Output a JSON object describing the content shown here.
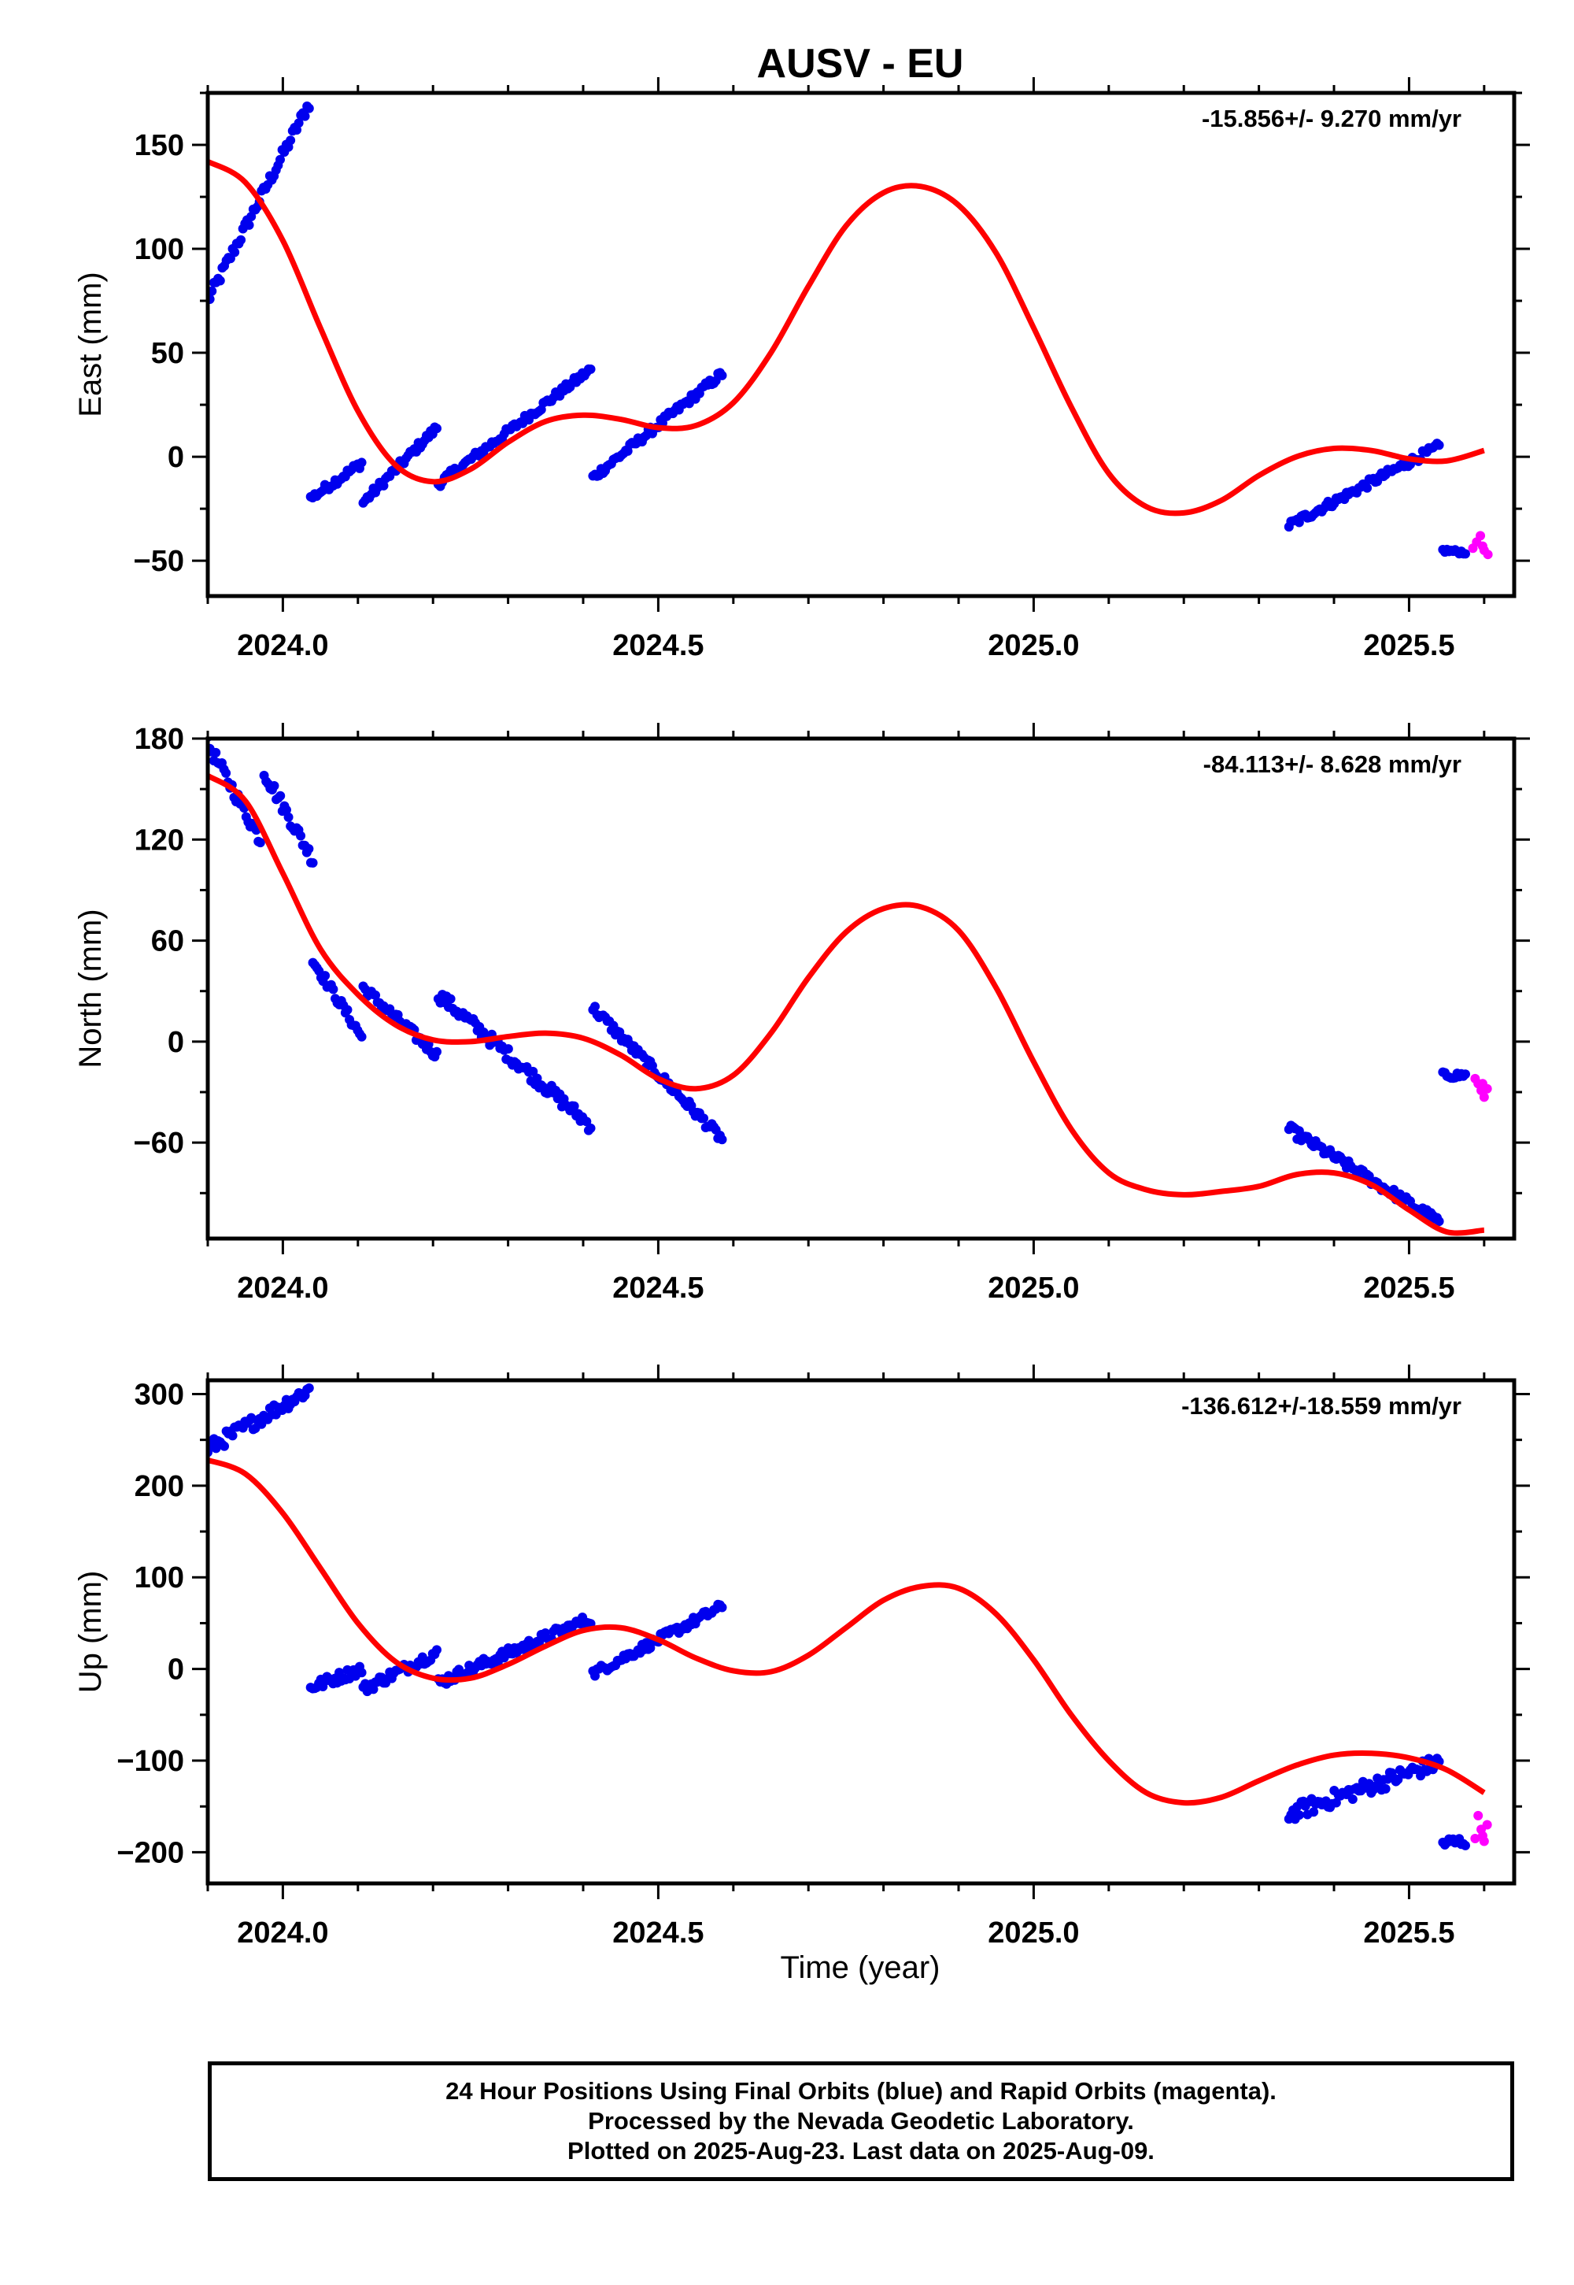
{
  "title": "AUSV - EU",
  "xlabel": "Time (year)",
  "footer": {
    "line1": "24 Hour Positions Using Final Orbits (blue) and Rapid Orbits (magenta).",
    "line2": "Processed by the Nevada Geodetic Laboratory.",
    "line3": "Plotted on 2025-Aug-23. Last data on 2025-Aug-09."
  },
  "colors": {
    "final": "#0000ee",
    "rapid": "#ff00ff",
    "model": "#ff0000",
    "frame": "#000000"
  },
  "chart_data": [
    {
      "type": "scatter",
      "panel": "east",
      "ylabel": "East (mm)",
      "rate_label": "-15.856+/- 9.270 mm/yr",
      "xlim": [
        2023.9,
        2025.64
      ],
      "ylim": [
        -67,
        175
      ],
      "xticks": [
        2024.0,
        2024.5,
        2025.0,
        2025.5
      ],
      "xtick_labels": [
        "2024.0",
        "2024.5",
        "2025.0",
        "2025.5"
      ],
      "yticks": [
        -50,
        0,
        50,
        100,
        150
      ],
      "ytick_labels": [
        "−50",
        "0",
        "50",
        "100",
        "150"
      ],
      "final_segments": [
        {
          "t0": 2023.9,
          "t1": 2024.035,
          "y0": 75,
          "y1": 170,
          "noise": 3
        },
        {
          "t0": 2024.037,
          "t1": 2024.105,
          "y0": -20,
          "y1": -3,
          "noise": 2
        },
        {
          "t0": 2024.107,
          "t1": 2024.205,
          "y0": -22,
          "y1": 14,
          "noise": 2
        },
        {
          "t0": 2024.207,
          "t1": 2024.41,
          "y0": -13,
          "y1": 42,
          "noise": 2
        },
        {
          "t0": 2024.413,
          "t1": 2024.585,
          "y0": -10,
          "y1": 40,
          "noise": 2
        },
        {
          "t0": 2025.34,
          "t1": 2025.54,
          "y0": -33,
          "y1": 5,
          "noise": 2
        },
        {
          "t0": 2025.545,
          "t1": 2025.575,
          "y0": -45,
          "y1": -46,
          "noise": 1
        }
      ],
      "rapid_points": [
        [
          2025.585,
          -44
        ],
        [
          2025.59,
          -41
        ],
        [
          2025.595,
          -38
        ],
        [
          2025.6,
          -45
        ],
        [
          2025.605,
          -47
        ],
        [
          2025.598,
          -43
        ]
      ],
      "model": [
        [
          2023.9,
          142
        ],
        [
          2023.95,
          132
        ],
        [
          2024.0,
          104
        ],
        [
          2024.05,
          62
        ],
        [
          2024.1,
          22
        ],
        [
          2024.15,
          -4
        ],
        [
          2024.2,
          -12
        ],
        [
          2024.25,
          -6
        ],
        [
          2024.3,
          7
        ],
        [
          2024.35,
          17
        ],
        [
          2024.4,
          20
        ],
        [
          2024.45,
          18
        ],
        [
          2024.5,
          14
        ],
        [
          2024.55,
          15
        ],
        [
          2024.6,
          26
        ],
        [
          2024.65,
          50
        ],
        [
          2024.7,
          82
        ],
        [
          2024.75,
          111
        ],
        [
          2024.8,
          127
        ],
        [
          2024.85,
          130
        ],
        [
          2024.9,
          121
        ],
        [
          2024.95,
          98
        ],
        [
          2025.0,
          62
        ],
        [
          2025.05,
          24
        ],
        [
          2025.1,
          -8
        ],
        [
          2025.15,
          -24
        ],
        [
          2025.2,
          -27
        ],
        [
          2025.25,
          -21
        ],
        [
          2025.3,
          -9
        ],
        [
          2025.35,
          0
        ],
        [
          2025.4,
          4
        ],
        [
          2025.45,
          3
        ],
        [
          2025.5,
          -1
        ],
        [
          2025.55,
          -2
        ],
        [
          2025.6,
          3
        ]
      ]
    },
    {
      "type": "scatter",
      "panel": "north",
      "ylabel": "North (mm)",
      "rate_label": "-84.113+/- 8.628 mm/yr",
      "xlim": [
        2023.9,
        2025.64
      ],
      "ylim": [
        -117,
        180
      ],
      "xticks": [
        2024.0,
        2024.5,
        2025.0,
        2025.5
      ],
      "xtick_labels": [
        "2024.0",
        "2024.5",
        "2025.0",
        "2025.5"
      ],
      "yticks": [
        -60,
        0,
        60,
        120,
        180
      ],
      "ytick_labels": [
        "−60",
        "0",
        "60",
        "120",
        "180"
      ],
      "final_segments": [
        {
          "t0": 2023.9,
          "t1": 2023.97,
          "y0": 177,
          "y1": 120,
          "noise": 4
        },
        {
          "t0": 2023.975,
          "t1": 2024.04,
          "y0": 160,
          "y1": 108,
          "noise": 4
        },
        {
          "t0": 2024.04,
          "t1": 2024.105,
          "y0": 48,
          "y1": 3,
          "noise": 3
        },
        {
          "t0": 2024.107,
          "t1": 2024.205,
          "y0": 32,
          "y1": -8,
          "noise": 3
        },
        {
          "t0": 2024.207,
          "t1": 2024.41,
          "y0": 28,
          "y1": -50,
          "noise": 4
        },
        {
          "t0": 2024.413,
          "t1": 2024.585,
          "y0": 20,
          "y1": -58,
          "noise": 3
        },
        {
          "t0": 2025.34,
          "t1": 2025.54,
          "y0": -52,
          "y1": -107,
          "noise": 3
        },
        {
          "t0": 2025.545,
          "t1": 2025.575,
          "y0": -20,
          "y1": -20,
          "noise": 2
        }
      ],
      "rapid_points": [
        [
          2025.588,
          -22
        ],
        [
          2025.592,
          -25
        ],
        [
          2025.596,
          -29
        ],
        [
          2025.6,
          -33
        ],
        [
          2025.604,
          -28
        ],
        [
          2025.598,
          -25
        ]
      ],
      "model": [
        [
          2023.9,
          158
        ],
        [
          2023.95,
          143
        ],
        [
          2024.0,
          100
        ],
        [
          2024.05,
          55
        ],
        [
          2024.1,
          28
        ],
        [
          2024.15,
          10
        ],
        [
          2024.2,
          1
        ],
        [
          2024.25,
          0
        ],
        [
          2024.3,
          3
        ],
        [
          2024.35,
          5
        ],
        [
          2024.4,
          2
        ],
        [
          2024.45,
          -8
        ],
        [
          2024.5,
          -22
        ],
        [
          2024.55,
          -28
        ],
        [
          2024.6,
          -20
        ],
        [
          2024.65,
          5
        ],
        [
          2024.7,
          38
        ],
        [
          2024.75,
          65
        ],
        [
          2024.8,
          79
        ],
        [
          2024.85,
          80
        ],
        [
          2024.9,
          66
        ],
        [
          2024.95,
          32
        ],
        [
          2025.0,
          -12
        ],
        [
          2025.05,
          -52
        ],
        [
          2025.1,
          -78
        ],
        [
          2025.15,
          -88
        ],
        [
          2025.2,
          -91
        ],
        [
          2025.25,
          -89
        ],
        [
          2025.3,
          -86
        ],
        [
          2025.35,
          -79
        ],
        [
          2025.4,
          -78
        ],
        [
          2025.45,
          -85
        ],
        [
          2025.5,
          -100
        ],
        [
          2025.55,
          -113
        ],
        [
          2025.6,
          -112
        ]
      ]
    },
    {
      "type": "scatter",
      "panel": "up",
      "ylabel": "Up (mm)",
      "rate_label": "-136.612+/-18.559 mm/yr",
      "xlim": [
        2023.9,
        2025.64
      ],
      "ylim": [
        -234,
        315
      ],
      "xticks": [
        2024.0,
        2024.5,
        2025.0,
        2025.5
      ],
      "xtick_labels": [
        "2024.0",
        "2024.5",
        "2025.0",
        "2025.5"
      ],
      "yticks": [
        -200,
        -100,
        0,
        100,
        200,
        300
      ],
      "ytick_labels": [
        "−200",
        "−100",
        "0",
        "100",
        "200",
        "300"
      ],
      "final_segments": [
        {
          "t0": 2023.9,
          "t1": 2024.035,
          "y0": 240,
          "y1": 305,
          "noise": 8
        },
        {
          "t0": 2024.037,
          "t1": 2024.105,
          "y0": -20,
          "y1": 0,
          "noise": 6
        },
        {
          "t0": 2024.107,
          "t1": 2024.205,
          "y0": -22,
          "y1": 18,
          "noise": 6
        },
        {
          "t0": 2024.207,
          "t1": 2024.41,
          "y0": -15,
          "y1": 55,
          "noise": 6
        },
        {
          "t0": 2024.413,
          "t1": 2024.585,
          "y0": -5,
          "y1": 68,
          "noise": 5
        },
        {
          "t0": 2025.34,
          "t1": 2025.54,
          "y0": -158,
          "y1": -102,
          "noise": 9
        },
        {
          "t0": 2025.545,
          "t1": 2025.575,
          "y0": -190,
          "y1": -188,
          "noise": 6
        }
      ],
      "rapid_points": [
        [
          2025.588,
          -185
        ],
        [
          2025.592,
          -160
        ],
        [
          2025.596,
          -175
        ],
        [
          2025.6,
          -188
        ],
        [
          2025.604,
          -170
        ],
        [
          2025.598,
          -182
        ]
      ],
      "model": [
        [
          2023.9,
          228
        ],
        [
          2023.95,
          213
        ],
        [
          2024.0,
          170
        ],
        [
          2024.05,
          110
        ],
        [
          2024.1,
          50
        ],
        [
          2024.15,
          8
        ],
        [
          2024.2,
          -10
        ],
        [
          2024.25,
          -10
        ],
        [
          2024.3,
          5
        ],
        [
          2024.35,
          25
        ],
        [
          2024.4,
          42
        ],
        [
          2024.45,
          45
        ],
        [
          2024.5,
          32
        ],
        [
          2024.55,
          12
        ],
        [
          2024.6,
          -2
        ],
        [
          2024.65,
          -3
        ],
        [
          2024.7,
          15
        ],
        [
          2024.75,
          45
        ],
        [
          2024.8,
          75
        ],
        [
          2024.85,
          90
        ],
        [
          2024.9,
          88
        ],
        [
          2024.95,
          60
        ],
        [
          2025.0,
          10
        ],
        [
          2025.05,
          -50
        ],
        [
          2025.1,
          -100
        ],
        [
          2025.15,
          -135
        ],
        [
          2025.2,
          -146
        ],
        [
          2025.25,
          -140
        ],
        [
          2025.3,
          -122
        ],
        [
          2025.35,
          -105
        ],
        [
          2025.4,
          -94
        ],
        [
          2025.45,
          -92
        ],
        [
          2025.5,
          -97
        ],
        [
          2025.55,
          -110
        ],
        [
          2025.6,
          -135
        ]
      ]
    }
  ]
}
